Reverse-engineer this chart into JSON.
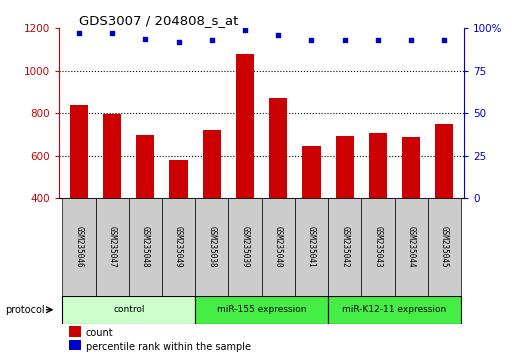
{
  "title": "GDS3007 / 204808_s_at",
  "samples": [
    "GSM235046",
    "GSM235047",
    "GSM235048",
    "GSM235049",
    "GSM235038",
    "GSM235039",
    "GSM235040",
    "GSM235041",
    "GSM235042",
    "GSM235043",
    "GSM235044",
    "GSM235045"
  ],
  "bar_values": [
    840,
    795,
    700,
    580,
    720,
    1080,
    870,
    645,
    695,
    705,
    690,
    750
  ],
  "percentile_values": [
    97,
    97,
    94,
    92,
    93,
    99,
    96,
    93,
    93,
    93,
    93,
    93
  ],
  "bar_color": "#cc0000",
  "dot_color": "#0000cc",
  "ylim_left": [
    400,
    1200
  ],
  "ylim_right": [
    0,
    100
  ],
  "yticks_left": [
    400,
    600,
    800,
    1000,
    1200
  ],
  "yticks_right": [
    0,
    25,
    50,
    75,
    100
  ],
  "grid_lines": [
    600,
    800,
    1000
  ],
  "groups": [
    {
      "label": "control",
      "start": 0,
      "end": 4,
      "color": "#ccffcc"
    },
    {
      "label": "miR-155 expression",
      "start": 4,
      "end": 8,
      "color": "#44ee44"
    },
    {
      "label": "miR-K12-11 expression",
      "start": 8,
      "end": 12,
      "color": "#44ee44"
    }
  ],
  "protocol_label": "protocol",
  "legend_items": [
    {
      "label": "count",
      "color": "#cc0000"
    },
    {
      "label": "percentile rank within the sample",
      "color": "#0000cc"
    }
  ],
  "axis_color_left": "#cc0000",
  "axis_color_right": "#0000cc",
  "bar_width": 0.55,
  "label_bg_color": "#cccccc",
  "figsize": [
    5.13,
    3.54
  ],
  "dpi": 100
}
